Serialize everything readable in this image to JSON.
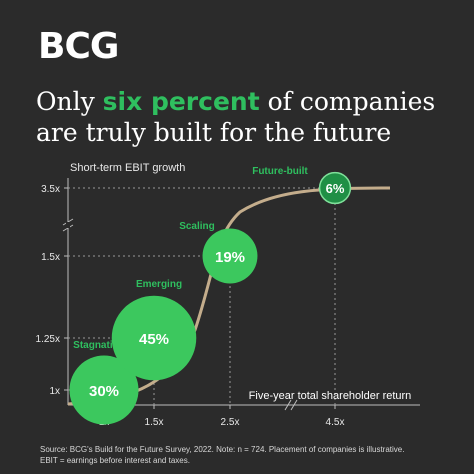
{
  "brand": {
    "logo_text": "BCG"
  },
  "headline": {
    "part1": "Only ",
    "highlight": "six percent",
    "part2": " of companies are truly built for the future"
  },
  "colors": {
    "background": "#2b2b2b",
    "accent_green": "#2fbf5f",
    "curve": "#c4ad8c",
    "bubble_fill": "#3cc85e",
    "bubble_dark": "#1f8f45"
  },
  "footnote": {
    "line1": "Source: BCG's Build for the Future Survey, 2022. Note: n = 724. Placement of companies is illustrative.",
    "line2": "EBIT = earnings before interest and taxes."
  },
  "chart_data": {
    "type": "scatter",
    "ylabel": "Short-term EBIT growth",
    "xlabel": "Five-year total shareholder return",
    "y_ticks": [
      "1x",
      "1.25x",
      "1.5x",
      "3.5x"
    ],
    "x_ticks": [
      "1x",
      "1.5x",
      "2.5x",
      "4.5x"
    ],
    "axis_breaks": true,
    "points": [
      {
        "category": "Stagnating",
        "value": "30%",
        "percent": 30,
        "x": "1x",
        "y": "1x"
      },
      {
        "category": "Emerging",
        "value": "45%",
        "percent": 45,
        "x": "1.5x",
        "y": "1.25x"
      },
      {
        "category": "Scaling",
        "value": "19%",
        "percent": 19,
        "x": "2.5x",
        "y": "1.5x"
      },
      {
        "category": "Future-built",
        "value": "6%",
        "percent": 6,
        "x": "4.5x",
        "y": "3.5x"
      }
    ]
  }
}
